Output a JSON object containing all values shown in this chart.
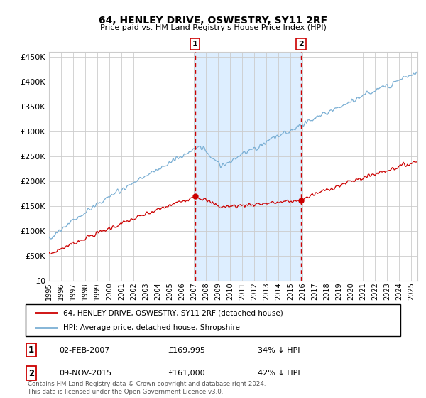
{
  "title": "64, HENLEY DRIVE, OSWESTRY, SY11 2RF",
  "subtitle": "Price paid vs. HM Land Registry's House Price Index (HPI)",
  "legend_label_red": "64, HENLEY DRIVE, OSWESTRY, SY11 2RF (detached house)",
  "legend_label_blue": "HPI: Average price, detached house, Shropshire",
  "annotation1_date": "02-FEB-2007",
  "annotation1_price": 169995,
  "annotation1_hpi": "34% ↓ HPI",
  "annotation1_year": 2007.09,
  "annotation2_date": "09-NOV-2015",
  "annotation2_price": 161000,
  "annotation2_hpi": "42% ↓ HPI",
  "annotation2_year": 2015.86,
  "footer": "Contains HM Land Registry data © Crown copyright and database right 2024.\nThis data is licensed under the Open Government Licence v3.0.",
  "ylim": [
    0,
    460000
  ],
  "yticks": [
    0,
    50000,
    100000,
    150000,
    200000,
    250000,
    300000,
    350000,
    400000,
    450000
  ],
  "red_color": "#cc0000",
  "blue_color": "#7aafd4",
  "shade_color": "#ddeeff",
  "background_color": "#ffffff",
  "grid_color": "#cccccc",
  "title_fontsize": 10,
  "subtitle_fontsize": 8
}
